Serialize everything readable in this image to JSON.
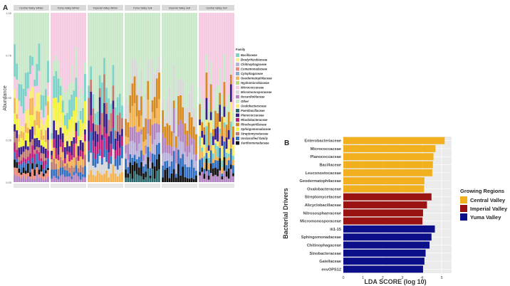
{
  "chart_data": [
    {
      "type": "bar",
      "stacked": true,
      "panel_label": "A",
      "ylabel": "Abundance",
      "xlabel": "",
      "ylim": [
        0,
        1
      ],
      "y_ticks": [
        0.0,
        0.25,
        0.5,
        0.75,
        1.0
      ],
      "y_tick_labels": [
        "0.00",
        "0.25",
        "0.50",
        "0.75",
        "1.00"
      ],
      "grid": true,
      "legend_position": "right",
      "legend_title": "Family",
      "facets": [
        {
          "name": "Central Valley Winter",
          "n": 16
        },
        {
          "name": "Yuma Valley Winter",
          "n": 16
        },
        {
          "name": "Imperial Valley Winter",
          "n": 16
        },
        {
          "name": "Yuma Valley Soil",
          "n": 16
        },
        {
          "name": "Imperial Valley Soil",
          "n": 16
        },
        {
          "name": "Central Valley Soil",
          "n": 16
        }
      ],
      "families": [
        {
          "name": "Bacillaceae",
          "color": "#7ad3c7"
        },
        {
          "name": "Bradyrhizobiaceae",
          "color": "#f7f28a"
        },
        {
          "name": "Chitinophagaceae",
          "color": "#b9b3dc"
        },
        {
          "name": "Comamonadaceae",
          "color": "#f08878"
        },
        {
          "name": "Cytophagaceae",
          "color": "#86aed4"
        },
        {
          "name": "Geodermatophilaceae",
          "color": "#f5b44f"
        },
        {
          "name": "Hyphomicrobiaceae",
          "color": "#b6dc6a"
        },
        {
          "name": "Micrococcaceae",
          "color": "#f7c9e2"
        },
        {
          "name": "Micromonosporaceae",
          "color": "#d8d8d8"
        },
        {
          "name": "Nocardioidaceae",
          "color": "#b484c2"
        },
        {
          "name": "Other",
          "color": "#c9eac8"
        },
        {
          "name": "Oxalobacteraceae",
          "color": "#fbee6e"
        },
        {
          "name": "Paenibacillaceae",
          "color": "#2b6a6e"
        },
        {
          "name": "Planococcaceae",
          "color": "#3a1f8c"
        },
        {
          "name": "Rhodobacteraceae",
          "color": "#c21e7c"
        },
        {
          "name": "Rhodospirillaceae",
          "color": "#d98a1e"
        },
        {
          "name": "Sphingomonadaceae",
          "color": "#f5f534"
        },
        {
          "name": "Streptomycetaceae",
          "color": "#c07c6e"
        },
        {
          "name": "Unclassified family",
          "color": "#2f6fc4"
        },
        {
          "name": "Xanthomonadaceae",
          "color": "#111111"
        }
      ]
    },
    {
      "type": "bar",
      "orientation": "horizontal",
      "panel_label": "B",
      "xlabel": "LDA SCORE (log 10)",
      "ylabel": "Bacterial Drivers",
      "xlim": [
        0,
        5.5
      ],
      "x_ticks": [
        0,
        1,
        2,
        3,
        4,
        5
      ],
      "x_tick_labels": [
        "0",
        "1",
        "2",
        "3",
        "4",
        "5"
      ],
      "grid": true,
      "legend_title": "Growing Regions",
      "legend_position": "right",
      "groups": [
        {
          "name": "Central Valley",
          "color": "#f2b01e"
        },
        {
          "name": "Imperial Valley",
          "color": "#9b1212"
        },
        {
          "name": "Yuma Valley",
          "color": "#0b0f8a"
        }
      ],
      "categories": [
        "Enterobacteriaceae",
        "Micrococcaceae",
        "Planococcaceae",
        "Bacillaceae",
        "Leuconostocaceae",
        "Geodermatophilaceae",
        "Oxalobacteraceae",
        "Streptomycetaceae",
        "Alicyclobacillaceae",
        "Nitrososphaeraceae",
        "Micromonosporaceae",
        "iii1-15",
        "Sphingomonadaceae",
        "Chitinophagaceae",
        "Sinobacteraceae",
        "Gaiellaceae",
        "envOPS12"
      ],
      "values": [
        5.15,
        4.68,
        4.58,
        4.55,
        4.52,
        4.12,
        4.1,
        4.48,
        4.25,
        4.05,
        4.02,
        4.65,
        4.48,
        4.38,
        4.18,
        4.12,
        4.05
      ],
      "group_of": [
        "Central Valley",
        "Central Valley",
        "Central Valley",
        "Central Valley",
        "Central Valley",
        "Central Valley",
        "Central Valley",
        "Imperial Valley",
        "Imperial Valley",
        "Imperial Valley",
        "Imperial Valley",
        "Yuma Valley",
        "Yuma Valley",
        "Yuma Valley",
        "Yuma Valley",
        "Yuma Valley",
        "Yuma Valley"
      ]
    }
  ]
}
